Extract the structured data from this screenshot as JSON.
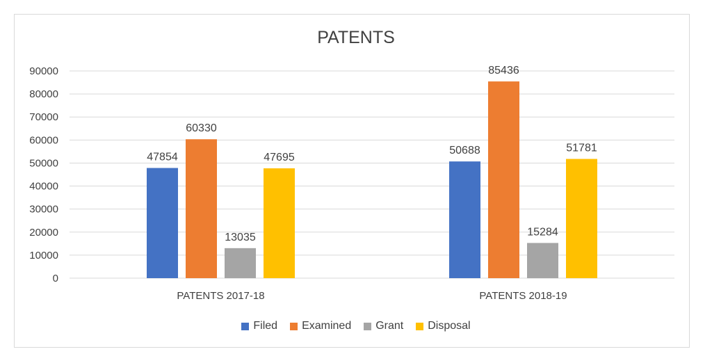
{
  "chart_data": {
    "type": "bar",
    "title": "PATENTS",
    "categories": [
      "PATENTS 2017-18",
      "PATENTS 2018-19"
    ],
    "series": [
      {
        "name": "Filed",
        "color": "#4472c4",
        "values": [
          47854,
          50688
        ]
      },
      {
        "name": "Examined",
        "color": "#ed7d31",
        "values": [
          60330,
          85436
        ]
      },
      {
        "name": "Grant",
        "color": "#a5a5a5",
        "values": [
          13035,
          15284
        ]
      },
      {
        "name": "Disposal",
        "color": "#ffc000",
        "values": [
          47695,
          51781
        ]
      }
    ],
    "ylim": [
      0,
      90000
    ],
    "yticks": [
      0,
      10000,
      20000,
      30000,
      40000,
      50000,
      60000,
      70000,
      80000,
      90000
    ],
    "grid": true,
    "legend_position": "bottom"
  }
}
